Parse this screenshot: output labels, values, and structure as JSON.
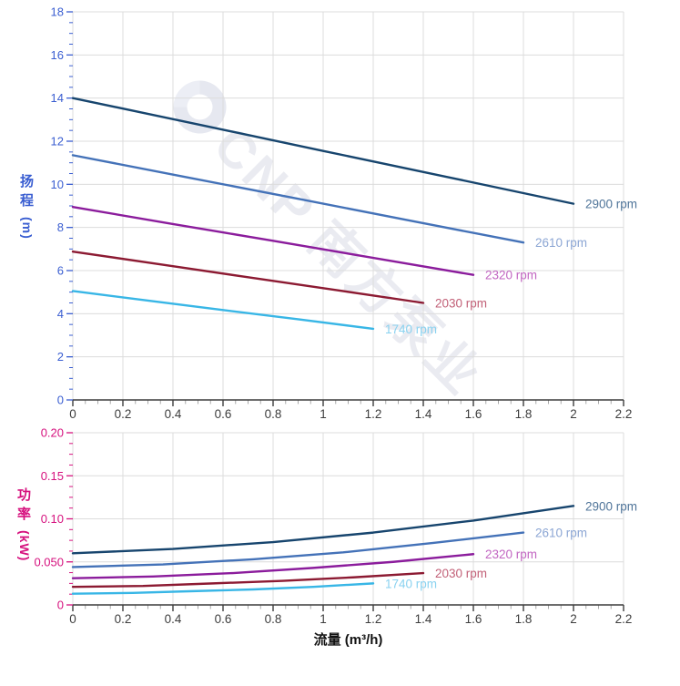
{
  "watermark": {
    "text": "CNP 南方泵业",
    "logo_icon": "cnp-ring-logo"
  },
  "axes": {
    "flow_title": "流量 (m³/h)",
    "head_title_chars": [
      "扬",
      "程"
    ],
    "head_unit": "(m)",
    "head_axis_color": "#3a5ed1",
    "power_title_chars": [
      "功",
      "率"
    ],
    "power_unit": "(kW)",
    "power_axis_color": "#d6117e",
    "x_tick_color": "#3d3d3d",
    "x_minor_tick_color": "#a8a8a8",
    "grid_color": "#dcdcdc"
  },
  "chart_data": [
    {
      "type": "line",
      "name": "head-vs-flow",
      "title": "",
      "xlabel": "流量 (m³/h)",
      "ylabel": "扬程 (m)",
      "xlim": [
        0,
        2.2
      ],
      "ylim": [
        0,
        18
      ],
      "x_major_step": 0.2,
      "x_minor_step": 0.05,
      "y_major_step": 2,
      "y_minor_step": 0.5,
      "grid": true,
      "legend_position": "inline-end-labels",
      "x_tick_labels": [
        "0",
        "0.2",
        "0.4",
        "0.6",
        "0.8",
        "1",
        "1.2",
        "1.4",
        "1.6",
        "1.8",
        "2",
        "2.2"
      ],
      "y_tick_labels": [
        "0",
        "2",
        "4",
        "6",
        "8",
        "10",
        "12",
        "14",
        "16",
        "18"
      ],
      "tick_label_color": "#3a5ed1",
      "series": [
        {
          "name": "2900 rpm",
          "color": "#17456e",
          "label_color": "#4f7499",
          "x": [
            0,
            0.5,
            1.0,
            1.5,
            2.0
          ],
          "y": [
            14.0,
            12.78,
            11.55,
            10.33,
            9.1
          ]
        },
        {
          "name": "2610 rpm",
          "color": "#4472b8",
          "label_color": "#8ca6d4",
          "x": [
            0,
            0.45,
            0.9,
            1.35,
            1.8
          ],
          "y": [
            11.35,
            10.34,
            9.33,
            8.31,
            7.3
          ]
        },
        {
          "name": "2320 rpm",
          "color": "#8b1c9c",
          "label_color": "#c266c2",
          "x": [
            0,
            0.4,
            0.8,
            1.2,
            1.6
          ],
          "y": [
            8.95,
            8.16,
            7.38,
            6.59,
            5.8
          ]
        },
        {
          "name": "2030 rpm",
          "color": "#8c1a32",
          "label_color": "#c26178",
          "x": [
            0,
            0.35,
            0.7,
            1.05,
            1.4
          ],
          "y": [
            6.88,
            6.29,
            5.69,
            5.1,
            4.5
          ]
        },
        {
          "name": "1740 rpm",
          "color": "#38b6e6",
          "label_color": "#8ad2f0",
          "x": [
            0,
            0.3,
            0.6,
            0.9,
            1.2
          ],
          "y": [
            5.05,
            4.61,
            4.17,
            3.74,
            3.3
          ]
        }
      ]
    },
    {
      "type": "line",
      "name": "power-vs-flow",
      "title": "",
      "xlabel": "流量 (m³/h)",
      "ylabel": "功率 (kW)",
      "xlim": [
        0,
        2.2
      ],
      "ylim": [
        0,
        0.2
      ],
      "x_major_step": 0.2,
      "x_minor_step": 0.05,
      "y_major_step": 0.05,
      "y_minor_step": 0.0125,
      "grid": true,
      "legend_position": "inline-end-labels",
      "x_tick_labels": [
        "0",
        "0.2",
        "0.4",
        "0.6",
        "0.8",
        "1",
        "1.2",
        "1.4",
        "1.6",
        "1.8",
        "2",
        "2.2"
      ],
      "y_tick_labels": [
        "0",
        "0.050",
        "0.10",
        "0.15",
        "0.20"
      ],
      "tick_label_color": "#d6117e",
      "series": [
        {
          "name": "2900 rpm",
          "color": "#17456e",
          "label_color": "#4f7499",
          "x": [
            0,
            0.4,
            0.8,
            1.2,
            1.6,
            2.0
          ],
          "y": [
            0.06,
            0.065,
            0.073,
            0.084,
            0.098,
            0.115
          ]
        },
        {
          "name": "2610 rpm",
          "color": "#4472b8",
          "label_color": "#8ca6d4",
          "x": [
            0,
            0.36,
            0.72,
            1.08,
            1.44,
            1.8
          ],
          "y": [
            0.044,
            0.047,
            0.053,
            0.061,
            0.072,
            0.084
          ]
        },
        {
          "name": "2320 rpm",
          "color": "#8b1c9c",
          "label_color": "#c266c2",
          "x": [
            0,
            0.32,
            0.64,
            0.96,
            1.28,
            1.6
          ],
          "y": [
            0.031,
            0.033,
            0.037,
            0.043,
            0.05,
            0.059
          ]
        },
        {
          "name": "2030 rpm",
          "color": "#8c1a32",
          "label_color": "#c26178",
          "x": [
            0,
            0.28,
            0.56,
            0.84,
            1.12,
            1.4
          ],
          "y": [
            0.021,
            0.022,
            0.025,
            0.028,
            0.032,
            0.037
          ]
        },
        {
          "name": "1740 rpm",
          "color": "#38b6e6",
          "label_color": "#8ad2f0",
          "x": [
            0,
            0.24,
            0.48,
            0.72,
            0.96,
            1.2
          ],
          "y": [
            0.013,
            0.014,
            0.016,
            0.018,
            0.021,
            0.025
          ]
        }
      ]
    }
  ]
}
